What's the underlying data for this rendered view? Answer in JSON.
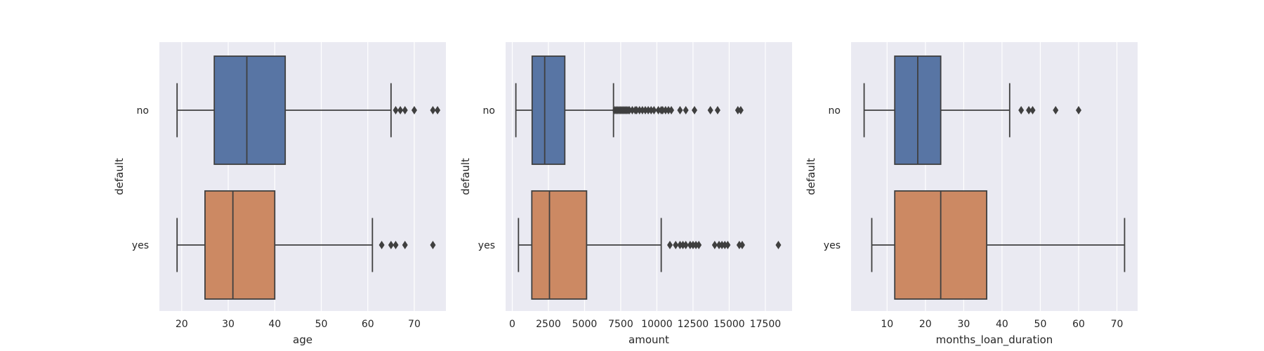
{
  "chart_data": [
    {
      "type": "boxplot",
      "orientation": "horizontal",
      "xlabel": "age",
      "ylabel": "default",
      "xlim": [
        15.2,
        76.8
      ],
      "xticks": [
        20,
        30,
        40,
        50,
        60,
        70
      ],
      "categories": [
        "no",
        "yes"
      ],
      "grid": true,
      "boxes": [
        {
          "category": "no",
          "color": "#5875a4",
          "whisker_low": 19,
          "q1": 27,
          "median": 34,
          "q3": 42.25,
          "whisker_high": 65,
          "outliers": [
            66,
            67,
            68,
            70,
            74,
            75
          ]
        },
        {
          "category": "yes",
          "color": "#cc8963",
          "whisker_low": 19,
          "q1": 25,
          "median": 31,
          "q3": 40,
          "whisker_high": 61,
          "outliers": [
            63,
            65,
            66,
            68,
            74
          ]
        }
      ]
    },
    {
      "type": "boxplot",
      "orientation": "horizontal",
      "xlabel": "amount",
      "ylabel": "default",
      "xlim": [
        -460,
        19350
      ],
      "xticks": [
        0,
        2500,
        5000,
        7500,
        10000,
        12500,
        15000,
        17500
      ],
      "categories": [
        "no",
        "yes"
      ],
      "grid": true,
      "boxes": [
        {
          "category": "no",
          "color": "#5875a4",
          "whisker_low": 250,
          "q1": 1375,
          "median": 2244,
          "q3": 3634,
          "whisker_high": 7000,
          "outliers": [
            7100,
            7200,
            7300,
            7400,
            7500,
            7600,
            7700,
            7800,
            7900,
            8000,
            8100,
            8300,
            8500,
            8600,
            8800,
            9000,
            9200,
            9400,
            9600,
            9800,
            10100,
            10300,
            10400,
            10600,
            10800,
            11000,
            11600,
            12000,
            12600,
            13700,
            14200,
            15600,
            15800
          ]
        },
        {
          "category": "yes",
          "color": "#cc8963",
          "whisker_low": 430,
          "q1": 1352,
          "median": 2574,
          "q3": 5141,
          "whisker_high": 10300,
          "outliers": [
            10900,
            11300,
            11600,
            11800,
            12000,
            12300,
            12500,
            12700,
            12900,
            14000,
            14300,
            14500,
            14700,
            14900,
            15700,
            15900,
            18400
          ]
        }
      ]
    },
    {
      "type": "boxplot",
      "orientation": "horizontal",
      "xlabel": "months_loan_duration",
      "ylabel": "default",
      "xlim": [
        0.6,
        75.4
      ],
      "xticks": [
        10,
        20,
        30,
        40,
        50,
        60,
        70
      ],
      "categories": [
        "no",
        "yes"
      ],
      "grid": true,
      "boxes": [
        {
          "category": "no",
          "color": "#5875a4",
          "whisker_low": 4,
          "q1": 12,
          "median": 18,
          "q3": 24,
          "whisker_high": 42,
          "outliers": [
            45,
            47,
            48,
            54,
            60
          ]
        },
        {
          "category": "yes",
          "color": "#cc8963",
          "whisker_low": 6,
          "q1": 12,
          "median": 24,
          "q3": 36,
          "whisker_high": 72,
          "outliers": []
        }
      ]
    }
  ],
  "style": {
    "background": "#ffffff",
    "axes_background": "#eaeaf2",
    "grid_color": "#ffffff",
    "line_color": "#3f3f3f",
    "text_color": "#262626"
  }
}
